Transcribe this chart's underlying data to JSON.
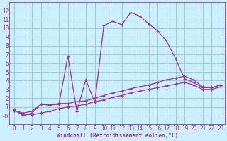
{
  "bg_color": "#cceeff",
  "grid_color": "#99cccc",
  "line_color": "#993399",
  "xlabel": "Windchill (Refroidissement éolien,°C)",
  "xlim": [
    -0.5,
    23.5
  ],
  "ylim": [
    -1.0,
    13.0
  ],
  "xticks": [
    0,
    1,
    2,
    3,
    4,
    5,
    6,
    7,
    8,
    9,
    10,
    11,
    12,
    13,
    14,
    15,
    16,
    17,
    18,
    19,
    20,
    21,
    22,
    23
  ],
  "yticks": [
    0,
    1,
    2,
    3,
    4,
    5,
    6,
    7,
    8,
    9,
    10,
    11,
    12
  ],
  "series": [
    {
      "x": [
        0,
        1,
        2,
        3,
        4,
        5,
        6,
        7,
        8,
        9,
        10,
        11,
        12,
        13,
        14,
        15,
        16,
        17,
        18,
        19,
        20,
        21,
        22,
        23
      ],
      "y": [
        0.7,
        0.0,
        0.3,
        1.3,
        1.2,
        1.3,
        6.8,
        0.5,
        4.1,
        1.5,
        10.3,
        10.8,
        10.4,
        11.8,
        11.4,
        10.5,
        9.7,
        8.5,
        6.5,
        4.2,
        3.8,
        3.2,
        3.2,
        3.5
      ]
    },
    {
      "x": [
        0,
        1,
        2,
        3,
        4,
        5,
        6,
        7,
        8,
        9,
        10,
        11,
        12,
        13,
        14,
        15,
        16,
        17,
        18,
        19,
        20,
        21,
        22,
        23
      ],
      "y": [
        0.6,
        0.3,
        0.5,
        1.3,
        1.2,
        1.4,
        1.4,
        1.6,
        1.7,
        2.0,
        2.3,
        2.6,
        2.8,
        3.1,
        3.3,
        3.5,
        3.8,
        4.1,
        4.3,
        4.5,
        4.1,
        3.3,
        3.2,
        3.5
      ]
    },
    {
      "x": [
        0,
        1,
        2,
        3,
        4,
        5,
        6,
        7,
        8,
        9,
        10,
        11,
        12,
        13,
        14,
        15,
        16,
        17,
        18,
        19,
        20,
        21,
        22,
        23
      ],
      "y": [
        0.6,
        0.2,
        0.1,
        0.3,
        0.5,
        0.8,
        1.0,
        1.1,
        1.3,
        1.6,
        1.8,
        2.1,
        2.3,
        2.6,
        2.8,
        3.0,
        3.2,
        3.4,
        3.6,
        3.8,
        3.5,
        3.0,
        3.0,
        3.3
      ]
    }
  ]
}
